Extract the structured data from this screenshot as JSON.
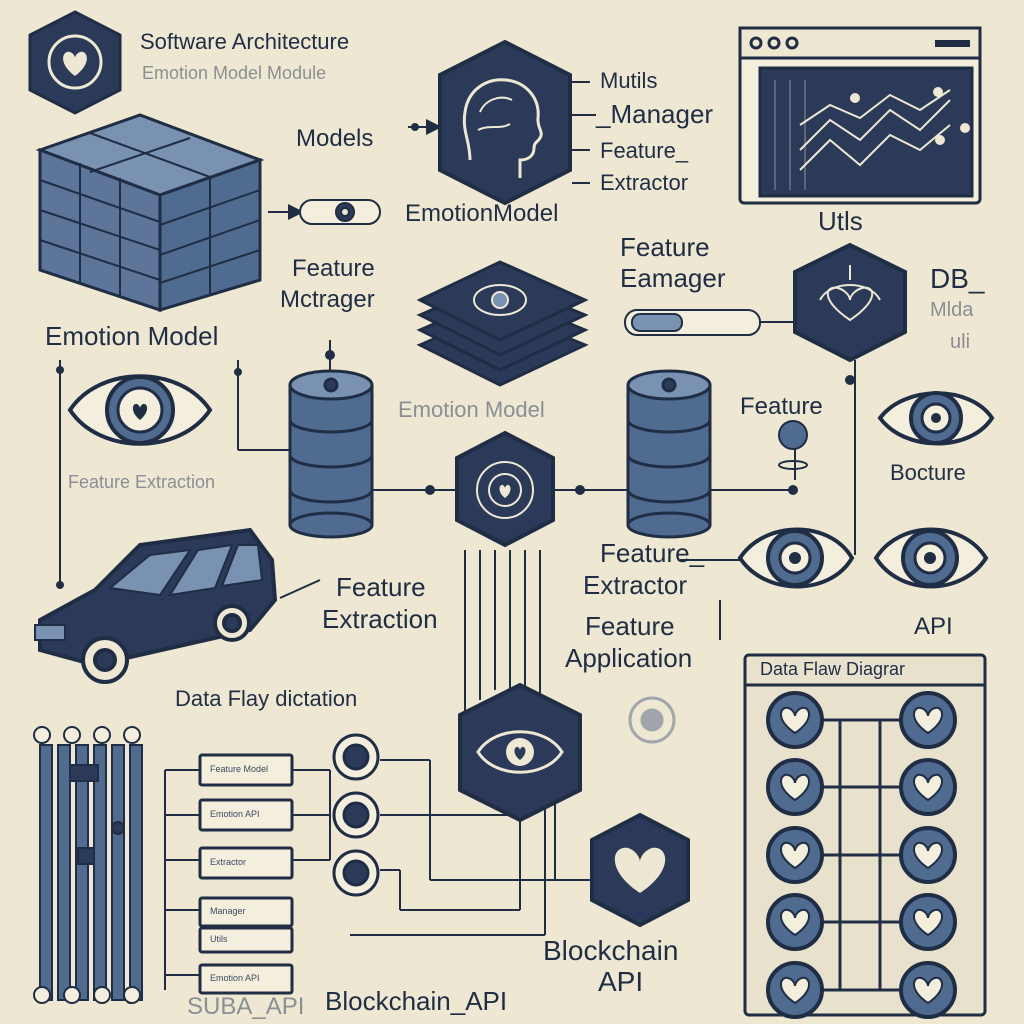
{
  "labels": {
    "software_architecture": "Software Architecture",
    "emotion_model_subtitle": "Emotion Model Module",
    "models": "Models",
    "mutils": "Mutils",
    "manager": "_Manager",
    "feature_top": "Feature_",
    "extractor_top": "Extractor",
    "emotionmodel": "EmotionModel",
    "utls": "Utls",
    "feature_mctrager_1": "Feature",
    "feature_mctrager_2": "Mctrager",
    "feature_eamager_1": "Feature",
    "feature_eamager_2": "Eamager",
    "db": "DB_",
    "db_sub_1": "Mlda",
    "db_sub_2": "uli",
    "emotion_model_left": "Emotion Model",
    "emotion_model_mid": "Emotion Model",
    "feature_right": "Feature",
    "bocture": "Bocture",
    "feature_extraction_faint": "Feature Extraction",
    "feature_extractor_1": "Feature_",
    "feature_extractor_2": "Extractor",
    "feature_extraction_1": "Feature",
    "feature_extraction_2": "Extraction",
    "feature_application_1": "Feature",
    "feature_application_2": "Application",
    "api_right": "API",
    "data_flay_dictation": "Data Flay dictation",
    "data_flaw_diagram": "Data Flaw Diagrar",
    "blockchain_api_1": "Blockchain",
    "blockchain_api_2": "API",
    "blockchain_api_bottom": "Blockchain_API",
    "suba_api": "SUBA_API"
  },
  "boxes": [
    "Feature Model",
    "Emotion API",
    "Extractor",
    "Manager",
    "Utils",
    "Emotion API"
  ],
  "colors": {
    "background": "#eee8d2",
    "ink": "#1f2d45",
    "steel": "#4f6b8f",
    "steel_light": "#7a92b2",
    "paper": "#f4efdc"
  }
}
